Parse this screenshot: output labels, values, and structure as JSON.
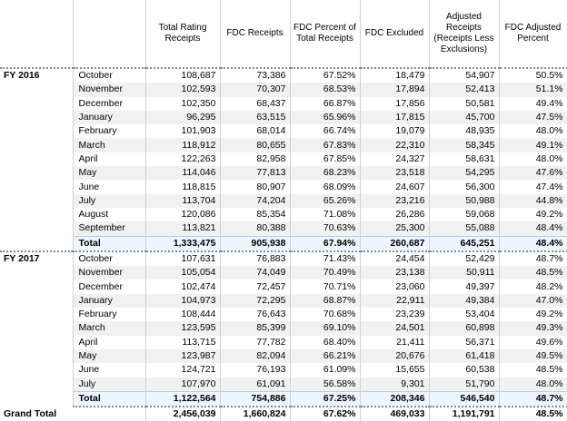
{
  "headers": [
    "Total Rating Receipts",
    "FDC Receipts",
    "FDC Percent of Total Receipts",
    "FDC Excluded",
    "Adjusted Receipts (Receipts Less Exclusions)",
    "FDC Adjusted Percent"
  ],
  "groups": [
    {
      "label": "FY 2016",
      "rows": [
        {
          "month": "October",
          "values": [
            "108,687",
            "73,386",
            "67.52%",
            "18,479",
            "54,907",
            "50.5%"
          ]
        },
        {
          "month": "November",
          "values": [
            "102,593",
            "70,307",
            "68.53%",
            "17,894",
            "52,413",
            "51.1%"
          ]
        },
        {
          "month": "December",
          "values": [
            "102,350",
            "68,437",
            "66.87%",
            "17,856",
            "50,581",
            "49.4%"
          ]
        },
        {
          "month": "January",
          "values": [
            "96,295",
            "63,515",
            "65.96%",
            "17,815",
            "45,700",
            "47.5%"
          ]
        },
        {
          "month": "February",
          "values": [
            "101,903",
            "68,014",
            "66.74%",
            "19,079",
            "48,935",
            "48.0%"
          ]
        },
        {
          "month": "March",
          "values": [
            "118,912",
            "80,655",
            "67.83%",
            "22,310",
            "58,345",
            "49.1%"
          ]
        },
        {
          "month": "April",
          "values": [
            "122,263",
            "82,958",
            "67.85%",
            "24,327",
            "58,631",
            "48.0%"
          ]
        },
        {
          "month": "May",
          "values": [
            "114,046",
            "77,813",
            "68.23%",
            "23,518",
            "54,295",
            "47.6%"
          ]
        },
        {
          "month": "June",
          "values": [
            "118,815",
            "80,907",
            "68.09%",
            "24,607",
            "56,300",
            "47.4%"
          ]
        },
        {
          "month": "July",
          "values": [
            "113,704",
            "74,204",
            "65.26%",
            "23,216",
            "50,988",
            "44.8%"
          ]
        },
        {
          "month": "August",
          "values": [
            "120,086",
            "85,354",
            "71.08%",
            "26,286",
            "59,068",
            "49.2%"
          ]
        },
        {
          "month": "September",
          "values": [
            "113,821",
            "80,388",
            "70.63%",
            "25,300",
            "55,088",
            "48.4%"
          ]
        }
      ],
      "total": {
        "label": "Total",
        "values": [
          "1,333,475",
          "905,938",
          "67.94%",
          "260,687",
          "645,251",
          "48.4%"
        ]
      }
    },
    {
      "label": "FY 2017",
      "rows": [
        {
          "month": "October",
          "values": [
            "107,631",
            "76,883",
            "71.43%",
            "24,454",
            "52,429",
            "48.7%"
          ]
        },
        {
          "month": "November",
          "values": [
            "105,054",
            "74,049",
            "70.49%",
            "23,138",
            "50,911",
            "48.5%"
          ]
        },
        {
          "month": "December",
          "values": [
            "102,474",
            "72,457",
            "70.71%",
            "23,060",
            "49,397",
            "48.2%"
          ]
        },
        {
          "month": "January",
          "values": [
            "104,973",
            "72,295",
            "68.87%",
            "22,911",
            "49,384",
            "47.0%"
          ]
        },
        {
          "month": "February",
          "values": [
            "108,444",
            "76,643",
            "70.68%",
            "23,239",
            "53,404",
            "49.2%"
          ]
        },
        {
          "month": "March",
          "values": [
            "123,595",
            "85,399",
            "69.10%",
            "24,501",
            "60,898",
            "49.3%"
          ]
        },
        {
          "month": "April",
          "values": [
            "113,715",
            "77,782",
            "68.40%",
            "21,411",
            "56,371",
            "49.6%"
          ]
        },
        {
          "month": "May",
          "values": [
            "123,987",
            "82,094",
            "66.21%",
            "20,676",
            "61,418",
            "49.5%"
          ]
        },
        {
          "month": "June",
          "values": [
            "124,721",
            "76,193",
            "61.09%",
            "15,655",
            "60,538",
            "48.5%"
          ]
        },
        {
          "month": "July",
          "values": [
            "107,970",
            "61,091",
            "56.58%",
            "9,301",
            "51,790",
            "48.0%"
          ]
        }
      ],
      "total": {
        "label": "Total",
        "values": [
          "1,122,564",
          "754,886",
          "67.25%",
          "208,346",
          "546,540",
          "48.7%"
        ]
      }
    }
  ],
  "grand_total": {
    "label": "Grand Total",
    "values": [
      "2,456,039",
      "1,660,824",
      "67.62%",
      "469,033",
      "1,191,791",
      "48.5%"
    ]
  }
}
